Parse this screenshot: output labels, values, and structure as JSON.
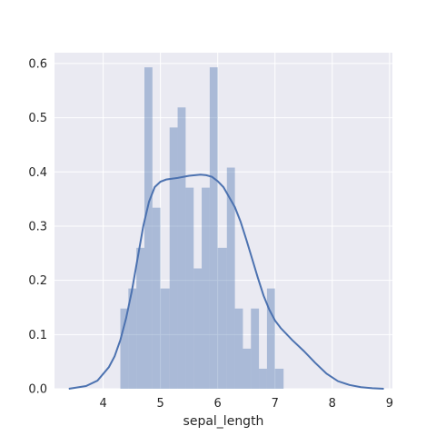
{
  "chart_data": {
    "type": "bar",
    "title": "",
    "xlabel": "sepal_length",
    "ylabel": "",
    "xlim": [
      3.15,
      9.05
    ],
    "ylim": [
      0.0,
      0.62
    ],
    "x_ticks": [
      4,
      5,
      6,
      7,
      8,
      9
    ],
    "x_tick_labels": [
      "4",
      "5",
      "6",
      "7",
      "8",
      "9"
    ],
    "y_ticks": [
      0.0,
      0.1,
      0.2,
      0.3,
      0.4,
      0.5,
      0.6
    ],
    "y_tick_labels": [
      "0.0",
      "0.1",
      "0.2",
      "0.3",
      "0.4",
      "0.5",
      "0.6"
    ],
    "grid": true,
    "legend": "none",
    "series": [
      {
        "kind": "histogram",
        "color": "#4c72b0",
        "bins": [
          {
            "x0": 4.3,
            "x1": 4.44,
            "value": 0.148
          },
          {
            "x0": 4.44,
            "x1": 4.58,
            "value": 0.185
          },
          {
            "x0": 4.58,
            "x1": 4.72,
            "value": 0.26
          },
          {
            "x0": 4.72,
            "x1": 4.86,
            "value": 0.593
          },
          {
            "x0": 4.86,
            "x1": 5.0,
            "value": 0.334
          },
          {
            "x0": 5.0,
            "x1": 5.16,
            "value": 0.185
          },
          {
            "x0": 5.16,
            "x1": 5.3,
            "value": 0.482
          },
          {
            "x0": 5.3,
            "x1": 5.44,
            "value": 0.519
          },
          {
            "x0": 5.44,
            "x1": 5.58,
            "value": 0.371
          },
          {
            "x0": 5.58,
            "x1": 5.72,
            "value": 0.222
          },
          {
            "x0": 5.72,
            "x1": 5.86,
            "value": 0.371
          },
          {
            "x0": 5.86,
            "x1": 6.0,
            "value": 0.593
          },
          {
            "x0": 6.0,
            "x1": 6.16,
            "value": 0.26
          },
          {
            "x0": 6.16,
            "x1": 6.3,
            "value": 0.408
          },
          {
            "x0": 6.3,
            "x1": 6.44,
            "value": 0.148
          },
          {
            "x0": 6.44,
            "x1": 6.58,
            "value": 0.074
          },
          {
            "x0": 6.58,
            "x1": 6.72,
            "value": 0.148
          },
          {
            "x0": 6.72,
            "x1": 6.86,
            "value": 0.037
          },
          {
            "x0": 6.86,
            "x1": 7.0,
            "value": 0.185
          },
          {
            "x0": 7.0,
            "x1": 7.15,
            "value": 0.037
          }
        ]
      },
      {
        "kind": "kde",
        "color": "#4c72b0",
        "x": [
          3.4,
          3.7,
          3.9,
          4.1,
          4.2,
          4.3,
          4.4,
          4.5,
          4.6,
          4.7,
          4.8,
          4.9,
          5.0,
          5.1,
          5.3,
          5.5,
          5.7,
          5.8,
          5.9,
          6.0,
          6.1,
          6.3,
          6.4,
          6.5,
          6.6,
          6.7,
          6.8,
          6.9,
          7.0,
          7.1,
          7.3,
          7.5,
          7.7,
          7.9,
          8.1,
          8.3,
          8.5,
          8.7,
          8.9
        ],
        "y": [
          0.0,
          0.005,
          0.015,
          0.04,
          0.06,
          0.09,
          0.13,
          0.18,
          0.24,
          0.3,
          0.345,
          0.372,
          0.382,
          0.386,
          0.389,
          0.393,
          0.395,
          0.394,
          0.391,
          0.383,
          0.372,
          0.335,
          0.308,
          0.275,
          0.24,
          0.205,
          0.172,
          0.146,
          0.126,
          0.112,
          0.09,
          0.07,
          0.048,
          0.028,
          0.014,
          0.007,
          0.003,
          0.001,
          0.0
        ]
      }
    ]
  }
}
